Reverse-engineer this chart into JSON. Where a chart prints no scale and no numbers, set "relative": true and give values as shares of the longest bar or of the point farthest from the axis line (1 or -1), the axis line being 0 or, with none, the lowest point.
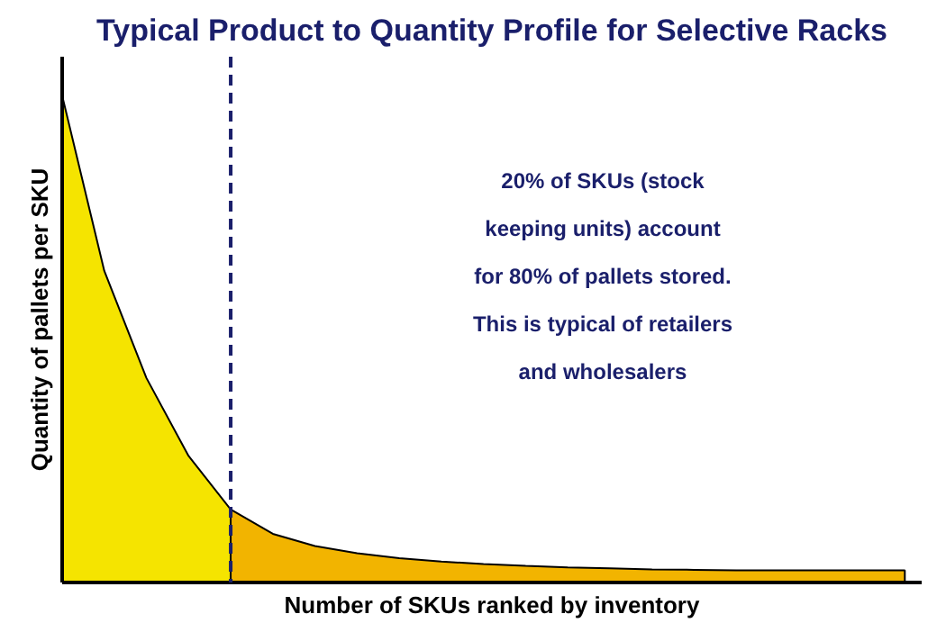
{
  "chart_data": {
    "type": "area",
    "relative": true,
    "title": "Typical Product to Quantity Profile for Selective Racks",
    "xlabel": "Number of SKUs ranked by inventory",
    "ylabel": "Quantity of pallets per SKU",
    "categories": [
      null,
      null,
      null,
      null,
      null,
      null,
      null,
      null,
      null,
      null,
      null,
      null,
      null,
      null,
      null,
      null,
      null,
      null,
      null,
      null,
      null
    ],
    "series": [
      {
        "color": "#f5e400",
        "values": [
          1,
          0.64,
          0.42,
          0.26,
          0.15,
          null,
          null,
          null,
          null,
          null,
          null,
          null,
          null,
          null,
          null,
          null,
          null,
          null,
          null,
          null,
          null
        ]
      },
      {
        "color": "#f2b400",
        "values": [
          null,
          null,
          null,
          null,
          0.15,
          0.1,
          0.075,
          0.06,
          0.05,
          0.043,
          0.038,
          0.034,
          0.031,
          0.029,
          0.027,
          0.026,
          0.025,
          0.025,
          0.025,
          0.025,
          0.025
        ]
      }
    ],
    "annotations": [
      "20% of SKUs (stock\nkeeping units) account\nfor 80% of pallets stored.\nThis is typical of retailers\nand wholesalers"
    ]
  }
}
